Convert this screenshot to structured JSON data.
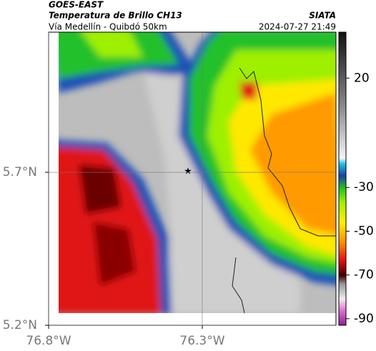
{
  "header": {
    "satellite": "GOES-EAST",
    "title": "Temperatura de Brillo CH13",
    "subtitle": "Vía Medellín - Quibdó 50km",
    "source": "SIATA",
    "datetime": "2024-07-27 21:49"
  },
  "chart_data": {
    "type": "map",
    "xlim": [
      -76.8,
      -75.865
    ],
    "ylim": [
      5.2,
      6.158
    ],
    "xticks": [
      {
        "value": -76.8,
        "label": "76.8°W"
      },
      {
        "value": -76.3,
        "label": "76.3°W"
      }
    ],
    "yticks": [
      {
        "value": 5.7,
        "label": "5.7°N"
      },
      {
        "value": 5.2,
        "label": "5.2°N"
      }
    ],
    "grid": true,
    "colorbar": {
      "lim": [
        -93,
        41
      ],
      "ticks": [
        20,
        -30,
        -50,
        -70,
        -90
      ]
    }
  }
}
